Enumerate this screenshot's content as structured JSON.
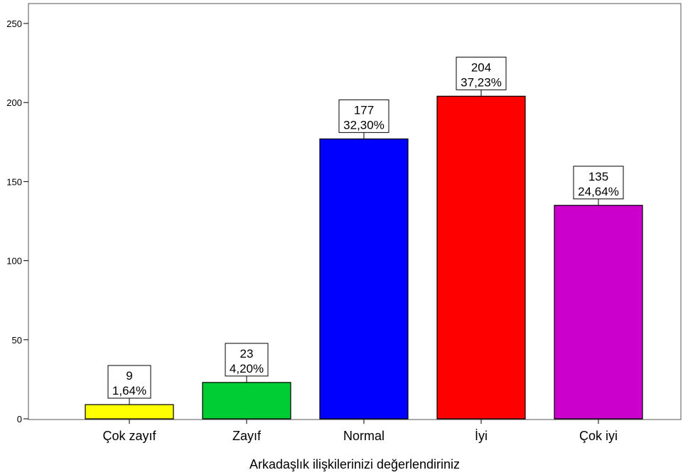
{
  "chart_data": {
    "type": "bar",
    "xlabel": "Arkadaşlık ilişkilerinizi değerlendiriniz",
    "ylabel": "",
    "ylim": [
      0,
      250
    ],
    "yticks": [
      0,
      50,
      100,
      150,
      200,
      250
    ],
    "grid": false,
    "categories": [
      "Çok zayıf",
      "Zayıf",
      "Normal",
      "İyi",
      "Çok iyi"
    ],
    "values": [
      9,
      23,
      177,
      204,
      135
    ],
    "percent_labels": [
      "1,64%",
      "4,20%",
      "32,30%",
      "37,23%",
      "24,64%"
    ],
    "colors": [
      "#ffff00",
      "#00cc33",
      "#0000ff",
      "#ff0000",
      "#cc00cc"
    ]
  }
}
